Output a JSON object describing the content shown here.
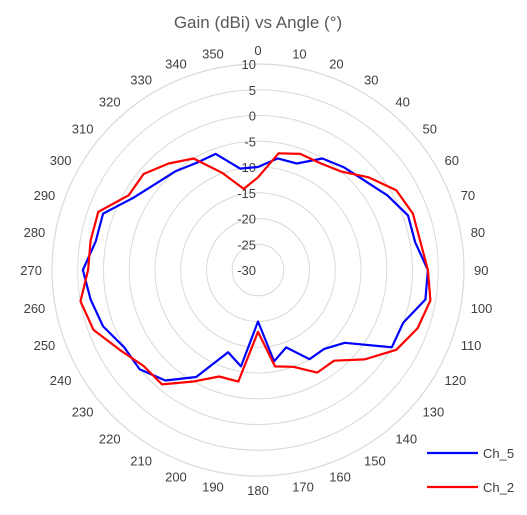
{
  "chart_data": {
    "type": "radar",
    "title": "Gain (dBi) vs Angle (°)",
    "angle_labels": [
      "0",
      "10",
      "20",
      "30",
      "40",
      "50",
      "60",
      "70",
      "80",
      "90",
      "100",
      "110",
      "120",
      "130",
      "140",
      "150",
      "160",
      "170",
      "180",
      "190",
      "200",
      "210",
      "220",
      "230",
      "240",
      "250",
      "260",
      "270",
      "280",
      "290",
      "300",
      "310",
      "320",
      "330",
      "340",
      "350"
    ],
    "radial_ticks": [
      "-30",
      "-25",
      "-20",
      "-15",
      "-10",
      "-5",
      "0",
      "5",
      "10"
    ],
    "rlim": [
      -30,
      10
    ],
    "grid": true,
    "legend_position": "bottom-right",
    "series": [
      {
        "name": "Ch_5",
        "color": "#0000ff",
        "values": [
          -10,
          -8,
          -8,
          -5,
          -4,
          -3,
          -1,
          1,
          1,
          3,
          3,
          0,
          0,
          -8,
          -10,
          -10,
          -14,
          -12,
          -20,
          -11,
          -13,
          -6,
          -2,
          0,
          0,
          2,
          3,
          4,
          2,
          2,
          -2,
          -4,
          -5,
          -6,
          -6,
          -10
        ]
      },
      {
        "name": "Ch_2",
        "color": "#ff0000",
        "values": [
          -12,
          -7,
          -6,
          -6,
          -5,
          -2,
          1,
          2,
          2,
          3,
          4,
          3,
          1,
          -3,
          -7,
          -7,
          -10,
          -11,
          -18,
          -8,
          -8,
          -5,
          -1,
          -1,
          1,
          4,
          5,
          3,
          3,
          3,
          -1,
          -1,
          -3,
          -5,
          -10,
          -14
        ]
      }
    ]
  }
}
